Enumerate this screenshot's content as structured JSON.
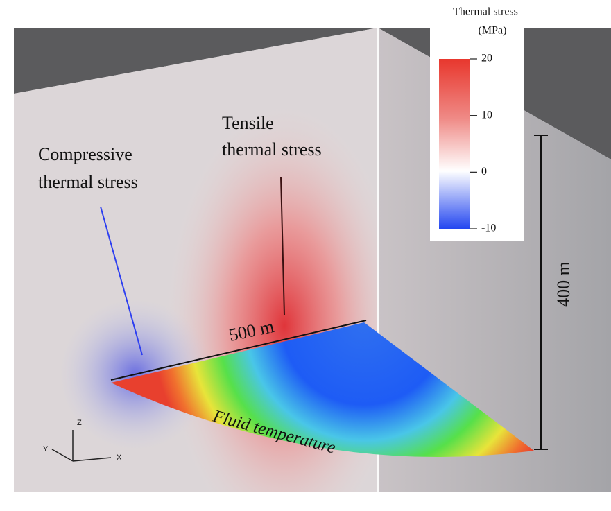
{
  "annotations": {
    "compressive": [
      "Compressive",
      "thermal stress"
    ],
    "tensile": [
      "Tensile",
      "thermal stress"
    ],
    "width": "500 m",
    "height": "400 m",
    "fan": "Fluid temperature"
  },
  "axes": {
    "z": "Z",
    "y": "Y",
    "x": "X"
  },
  "colorbar": {
    "title": "Thermal stress",
    "unit": "(MPa)",
    "lim": [
      -10,
      20
    ],
    "ticks": [
      20,
      10,
      0,
      -10
    ]
  }
}
